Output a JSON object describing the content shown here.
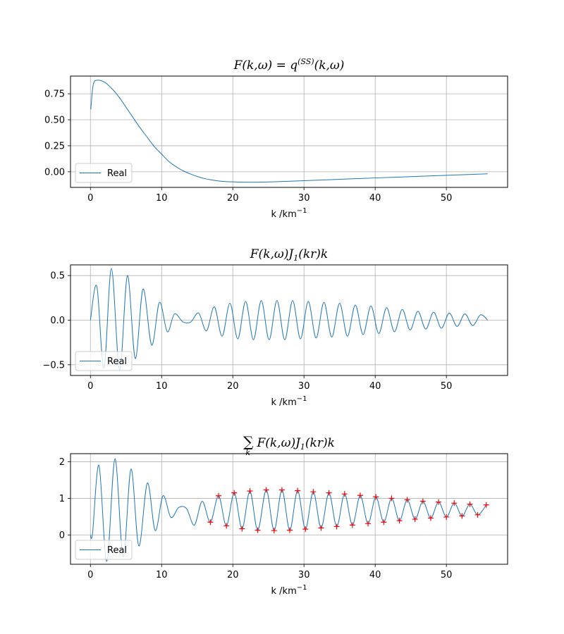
{
  "chart_data": [
    {
      "type": "line",
      "title": "F(k,ω) = q^(SS)(k,ω)",
      "title_main": "F(k,ω) = q",
      "title_sup": "(SS)",
      "title_tail": "(k,ω)",
      "xlabel": "k /km",
      "xlabel_sup": "−1",
      "xlim": [
        -2.8,
        58.6
      ],
      "ylim": [
        -0.15,
        0.92
      ],
      "xticks": [
        0,
        10,
        20,
        30,
        40,
        50
      ],
      "xtick_labels": [
        "0",
        "10",
        "20",
        "30",
        "40",
        "50"
      ],
      "yticks": [
        0.0,
        0.25,
        0.5,
        0.75
      ],
      "ytick_labels": [
        "0.00",
        "0.25",
        "0.50",
        "0.75"
      ],
      "grid": true,
      "legend": {
        "position": "lower-left",
        "entries": [
          "Real"
        ]
      },
      "series": [
        {
          "name": "Real",
          "color": "#1f77b4",
          "x": [
            0.05,
            0.4,
            1,
            2,
            3,
            4,
            5,
            6,
            7,
            8,
            9,
            10,
            11,
            12,
            13,
            14,
            15,
            16,
            17,
            18,
            19,
            20,
            21,
            22,
            23,
            24,
            26,
            28,
            30,
            33,
            36,
            40,
            44,
            48,
            52,
            55.8
          ],
          "y": [
            0.6,
            0.84,
            0.88,
            0.86,
            0.8,
            0.72,
            0.62,
            0.52,
            0.42,
            0.33,
            0.24,
            0.17,
            0.1,
            0.05,
            0.01,
            -0.02,
            -0.045,
            -0.065,
            -0.078,
            -0.088,
            -0.094,
            -0.097,
            -0.099,
            -0.1,
            -0.1,
            -0.099,
            -0.096,
            -0.091,
            -0.086,
            -0.078,
            -0.07,
            -0.059,
            -0.049,
            -0.039,
            -0.029,
            -0.02
          ]
        }
      ]
    },
    {
      "type": "line",
      "title": "F(k,ω)J1(kr)k",
      "title_main": "F(k,ω)J",
      "title_sub": "1",
      "title_tail": "(kr)k",
      "xlabel": "k /km",
      "xlabel_sup": "−1",
      "xlim": [
        -2.8,
        58.6
      ],
      "ylim": [
        -0.62,
        0.62
      ],
      "xticks": [
        0,
        10,
        20,
        30,
        40,
        50
      ],
      "xtick_labels": [
        "0",
        "10",
        "20",
        "30",
        "40",
        "50"
      ],
      "yticks": [
        -0.5,
        0.0,
        0.5
      ],
      "ytick_labels": [
        "−0.5",
        "0.0",
        "0.5"
      ],
      "grid": true,
      "legend": {
        "position": "lower-left",
        "entries": [
          "Real"
        ]
      },
      "series": [
        {
          "name": "Real",
          "color": "#1f77b4",
          "x": [
            0,
            0.9,
            1.9,
            2.95,
            4.1,
            5.2,
            6.3,
            7.4,
            8.6,
            9.7,
            10.8,
            11.8,
            13,
            14.1,
            15.2,
            16.3,
            17.4,
            18.5,
            19.6,
            20.7,
            21.8,
            22.9,
            24,
            25.1,
            26.2,
            27.3,
            28.4,
            29.5,
            30.6,
            31.7,
            32.8,
            33.9,
            35,
            36.1,
            37.2,
            38.3,
            39.4,
            40.5,
            41.6,
            42.7,
            43.8,
            44.9,
            46,
            47.1,
            48.2,
            49.3,
            50.4,
            51.5,
            52.6,
            53.7,
            54.8,
            55.8
          ],
          "y": [
            0,
            0.38,
            -0.54,
            0.58,
            -0.56,
            0.5,
            -0.43,
            0.35,
            -0.28,
            0.2,
            -0.13,
            0.07,
            -0.02,
            -0.02,
            0.08,
            -0.12,
            0.15,
            -0.18,
            0.19,
            -0.21,
            0.21,
            -0.22,
            0.22,
            -0.22,
            0.22,
            -0.22,
            0.22,
            -0.21,
            0.21,
            -0.2,
            0.2,
            -0.19,
            0.19,
            -0.18,
            0.17,
            -0.16,
            0.16,
            -0.15,
            0.14,
            -0.13,
            0.12,
            -0.11,
            0.1,
            -0.1,
            0.09,
            -0.09,
            0.08,
            -0.07,
            0.07,
            -0.06,
            0.06,
            0
          ]
        }
      ]
    },
    {
      "type": "line",
      "title": "Σk F(k,ω)J1(kr)k",
      "title_sigma": "∑",
      "title_sigma_sub": "k",
      "title_main": "F(k,ω)J",
      "title_sub": "1",
      "title_tail": "(kr)k",
      "xlabel": "k /km",
      "xlabel_sup": "−1",
      "xlim": [
        -2.8,
        58.6
      ],
      "ylim": [
        -0.8,
        2.22
      ],
      "xticks": [
        0,
        10,
        20,
        30,
        40,
        50
      ],
      "xtick_labels": [
        "0",
        "10",
        "20",
        "30",
        "40",
        "50"
      ],
      "yticks": [
        0,
        1,
        2
      ],
      "ytick_labels": [
        "0",
        "1",
        "2"
      ],
      "grid": true,
      "legend": {
        "position": "lower-left",
        "entries": [
          "Real"
        ]
      },
      "series": [
        {
          "name": "Real",
          "color": "#1f77b4",
          "x": [
            0,
            0.3,
            1.2,
            2.3,
            3.45,
            4.6,
            5.7,
            6.8,
            8,
            9.1,
            10.2,
            11.3,
            12.4,
            13.5,
            14.6,
            15.7,
            16.85,
            18,
            19.1,
            20.2,
            21.3,
            22.4,
            23.5,
            24.7,
            25.8,
            26.9,
            28,
            29.1,
            30.2,
            31.3,
            32.4,
            33.5,
            34.6,
            35.7,
            36.8,
            37.9,
            39,
            40.1,
            41.2,
            42.3,
            43.4,
            44.5,
            45.6,
            46.7,
            47.8,
            48.9,
            50,
            51.1,
            52.2,
            53.3,
            54.4,
            55.6
          ],
          "y": [
            0,
            0.05,
            1.9,
            -0.72,
            2.08,
            -0.6,
            1.8,
            -0.3,
            1.42,
            0.12,
            1.07,
            0.48,
            0.75,
            0.72,
            0.27,
            0.92,
            0.35,
            1.07,
            0.25,
            1.15,
            0.17,
            1.2,
            0.13,
            1.23,
            0.12,
            1.23,
            0.13,
            1.21,
            0.16,
            1.18,
            0.19,
            1.15,
            0.23,
            1.12,
            0.27,
            1.08,
            0.31,
            1.04,
            0.35,
            1.0,
            0.39,
            0.96,
            0.43,
            0.92,
            0.46,
            0.9,
            0.49,
            0.87,
            0.52,
            0.84,
            0.55,
            0.82
          ]
        },
        {
          "name": "markers",
          "color": "#ff0000",
          "marker": "+",
          "x": [
            16.85,
            18,
            19.1,
            20.2,
            21.3,
            22.4,
            23.5,
            24.7,
            25.8,
            26.9,
            28,
            29.1,
            30.2,
            31.3,
            32.4,
            33.5,
            34.6,
            35.7,
            36.8,
            37.9,
            39,
            40.1,
            41.2,
            42.3,
            43.4,
            44.5,
            45.6,
            46.7,
            47.8,
            48.9,
            50,
            51.1,
            52.2,
            53.3,
            54.4,
            55.6
          ],
          "y": [
            0.35,
            1.07,
            0.25,
            1.15,
            0.17,
            1.2,
            0.13,
            1.23,
            0.12,
            1.23,
            0.13,
            1.21,
            0.16,
            1.18,
            0.19,
            1.15,
            0.23,
            1.12,
            0.27,
            1.08,
            0.31,
            1.04,
            0.35,
            1.0,
            0.39,
            0.96,
            0.43,
            0.92,
            0.46,
            0.9,
            0.49,
            0.87,
            0.52,
            0.84,
            0.55,
            0.82
          ]
        }
      ]
    }
  ]
}
